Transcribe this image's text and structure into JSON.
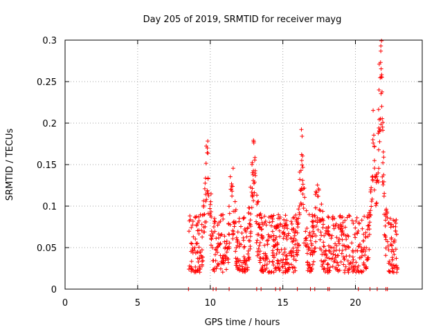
{
  "colors": {
    "series": "#ff0000",
    "frame": "#000000",
    "grid": "#a0a0a0",
    "background": "#ffffff"
  },
  "chart_data": {
    "type": "scatter",
    "title": "Day 205 of 2019, SRMTID for receiver mayg",
    "xlabel": "GPS time / hours",
    "ylabel": "SRMTID / TECUs",
    "xlim": [
      0,
      24.6
    ],
    "ylim": [
      0,
      0.3
    ],
    "xticks": [
      0,
      5,
      10,
      15,
      20
    ],
    "yticks": [
      0,
      0.05,
      0.1,
      0.15,
      0.2,
      0.25,
      0.3
    ],
    "xtick_labels": [
      "0",
      "5",
      "10",
      "15",
      "20"
    ],
    "ytick_labels": [
      "0",
      "0.05",
      "0.1",
      "0.15",
      "0.2",
      "0.25",
      "0.3"
    ],
    "grid": true,
    "marker": "+",
    "series": [
      {
        "name": "SRMTID",
        "x_range": [
          8.5,
          22.9
        ],
        "baseline_range": [
          0.02,
          0.09
        ],
        "peaks": [
          {
            "x": 9.8,
            "y": 0.17
          },
          {
            "x": 11.5,
            "y": 0.118
          },
          {
            "x": 13.0,
            "y": 0.176
          },
          {
            "x": 16.3,
            "y": 0.155
          },
          {
            "x": 17.4,
            "y": 0.112
          },
          {
            "x": 21.2,
            "y": 0.18
          },
          {
            "x": 21.75,
            "y": 0.293
          }
        ],
        "zero_points_x": [
          8.5,
          10.2,
          10.4,
          11.3,
          13.2,
          13.5,
          14.5,
          14.8,
          16.0,
          16.9,
          17.2,
          18.1,
          18.2,
          20.2,
          21.0,
          21.5,
          22.1,
          22.2
        ]
      }
    ]
  }
}
